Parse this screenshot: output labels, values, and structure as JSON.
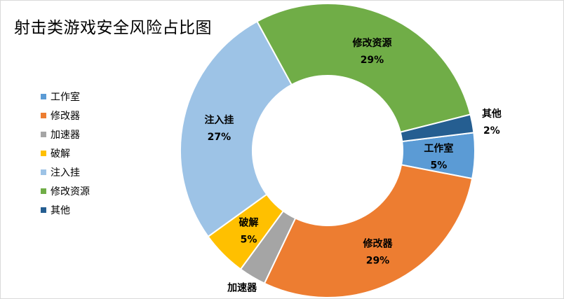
{
  "chart_data": {
    "type": "pie",
    "variant": "doughnut",
    "title": "射击类游戏安全风险占比图",
    "legend_position": "left",
    "slices": [
      {
        "name": "工作室",
        "value": 5,
        "label": "5%",
        "color": "#5b9bd5"
      },
      {
        "name": "修改器",
        "value": 29,
        "label": "29%",
        "color": "#ed7d31"
      },
      {
        "name": "加速器",
        "value": 3,
        "label": "3%",
        "color": "#a5a5a5"
      },
      {
        "name": "破解",
        "value": 5,
        "label": "5%",
        "color": "#ffc000"
      },
      {
        "name": "注入挂",
        "value": 27,
        "label": "27%",
        "color": "#9dc3e6"
      },
      {
        "name": "修改资源",
        "value": 29,
        "label": "29%",
        "color": "#70ad47"
      },
      {
        "name": "其他",
        "value": 2,
        "label": "2%",
        "color": "#255e91"
      }
    ]
  }
}
